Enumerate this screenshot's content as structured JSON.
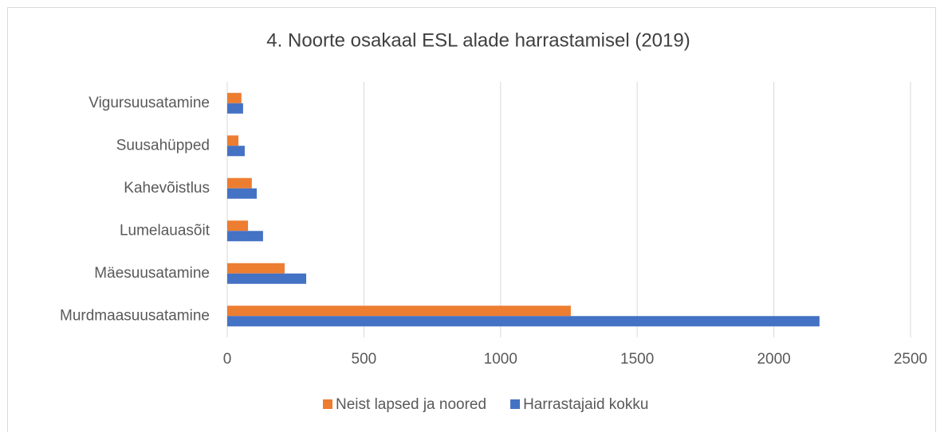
{
  "chart_data": {
    "type": "bar",
    "orientation": "horizontal",
    "title": "4. Noorte osakaal ESL alade harrastamisel (2019)",
    "categories": [
      "Murdmaasuusatamine",
      "Mäesuusatamine",
      "Lumelauasõit",
      "Kahevõistlus",
      "Suusahüpped",
      "Vigursuusatamine"
    ],
    "series": [
      {
        "name": "Neist lapsed ja noored",
        "color": "#ed7d31",
        "values": [
          1257,
          210,
          76,
          90,
          41,
          52
        ]
      },
      {
        "name": "Harrastajaid kokku",
        "color": "#4472c4",
        "values": [
          2167,
          289,
          131,
          108,
          64,
          58
        ]
      }
    ],
    "xlim": [
      0,
      2500
    ],
    "xticks": [
      0,
      500,
      1000,
      1500,
      2000,
      2500
    ],
    "grid": true,
    "legend": "bottom"
  }
}
